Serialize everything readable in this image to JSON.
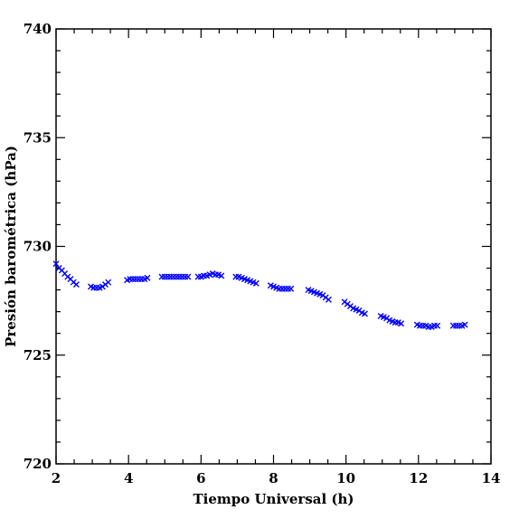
{
  "chart_data": {
    "type": "scatter",
    "xlabel": "Tiempo Universal (h)",
    "ylabel": "Presión barométrica (hPa)",
    "xlim": [
      2,
      14
    ],
    "ylim": [
      720,
      740
    ],
    "x_ticks": [
      "2",
      "4",
      "6",
      "8",
      "10",
      "12",
      "14"
    ],
    "y_ticks": [
      "720",
      "725",
      "730",
      "735",
      "740"
    ],
    "marker": "x",
    "grid": false,
    "series": [
      {
        "color": "#0000ff",
        "x": [
          2.0,
          2.08,
          2.16,
          2.24,
          2.32,
          2.4,
          2.48,
          2.56,
          2.96,
          3.04,
          3.12,
          3.2,
          3.28,
          3.36,
          3.44,
          3.96,
          4.04,
          4.12,
          4.2,
          4.28,
          4.36,
          4.44,
          4.52,
          4.92,
          5.0,
          5.08,
          5.16,
          5.24,
          5.32,
          5.4,
          5.48,
          5.56,
          5.64,
          5.92,
          6.0,
          6.08,
          6.16,
          6.24,
          6.32,
          6.4,
          6.48,
          6.56,
          6.96,
          7.04,
          7.12,
          7.2,
          7.28,
          7.36,
          7.44,
          7.52,
          7.92,
          8.0,
          8.08,
          8.16,
          8.24,
          8.32,
          8.4,
          8.48,
          8.96,
          9.04,
          9.12,
          9.2,
          9.28,
          9.36,
          9.44,
          9.52,
          9.96,
          10.04,
          10.12,
          10.2,
          10.28,
          10.36,
          10.44,
          10.52,
          10.96,
          11.04,
          11.12,
          11.2,
          11.28,
          11.36,
          11.44,
          11.52,
          11.96,
          12.04,
          12.12,
          12.2,
          12.28,
          12.36,
          12.44,
          12.52,
          12.96,
          13.04,
          13.12,
          13.2,
          13.28
        ],
        "y": [
          729.2,
          729.0,
          728.9,
          728.75,
          728.6,
          728.5,
          728.35,
          728.25,
          728.15,
          728.1,
          728.1,
          728.1,
          728.15,
          728.25,
          728.35,
          728.45,
          728.5,
          728.5,
          728.5,
          728.5,
          728.5,
          728.5,
          728.55,
          728.6,
          728.6,
          728.6,
          728.6,
          728.6,
          728.6,
          728.6,
          728.6,
          728.6,
          728.6,
          728.6,
          728.6,
          728.65,
          728.65,
          728.7,
          728.75,
          728.7,
          728.7,
          728.65,
          728.6,
          728.6,
          728.55,
          728.5,
          728.45,
          728.4,
          728.35,
          728.3,
          728.2,
          728.15,
          728.1,
          728.05,
          728.05,
          728.05,
          728.05,
          728.05,
          728.0,
          727.95,
          727.9,
          727.85,
          727.8,
          727.75,
          727.65,
          727.55,
          727.45,
          727.35,
          727.25,
          727.15,
          727.1,
          727.05,
          726.95,
          726.9,
          726.8,
          726.75,
          726.7,
          726.6,
          726.55,
          726.5,
          726.5,
          726.45,
          726.4,
          726.35,
          726.35,
          726.35,
          726.3,
          726.3,
          726.35,
          726.35,
          726.35,
          726.35,
          726.35,
          726.35,
          726.4
        ]
      }
    ]
  }
}
